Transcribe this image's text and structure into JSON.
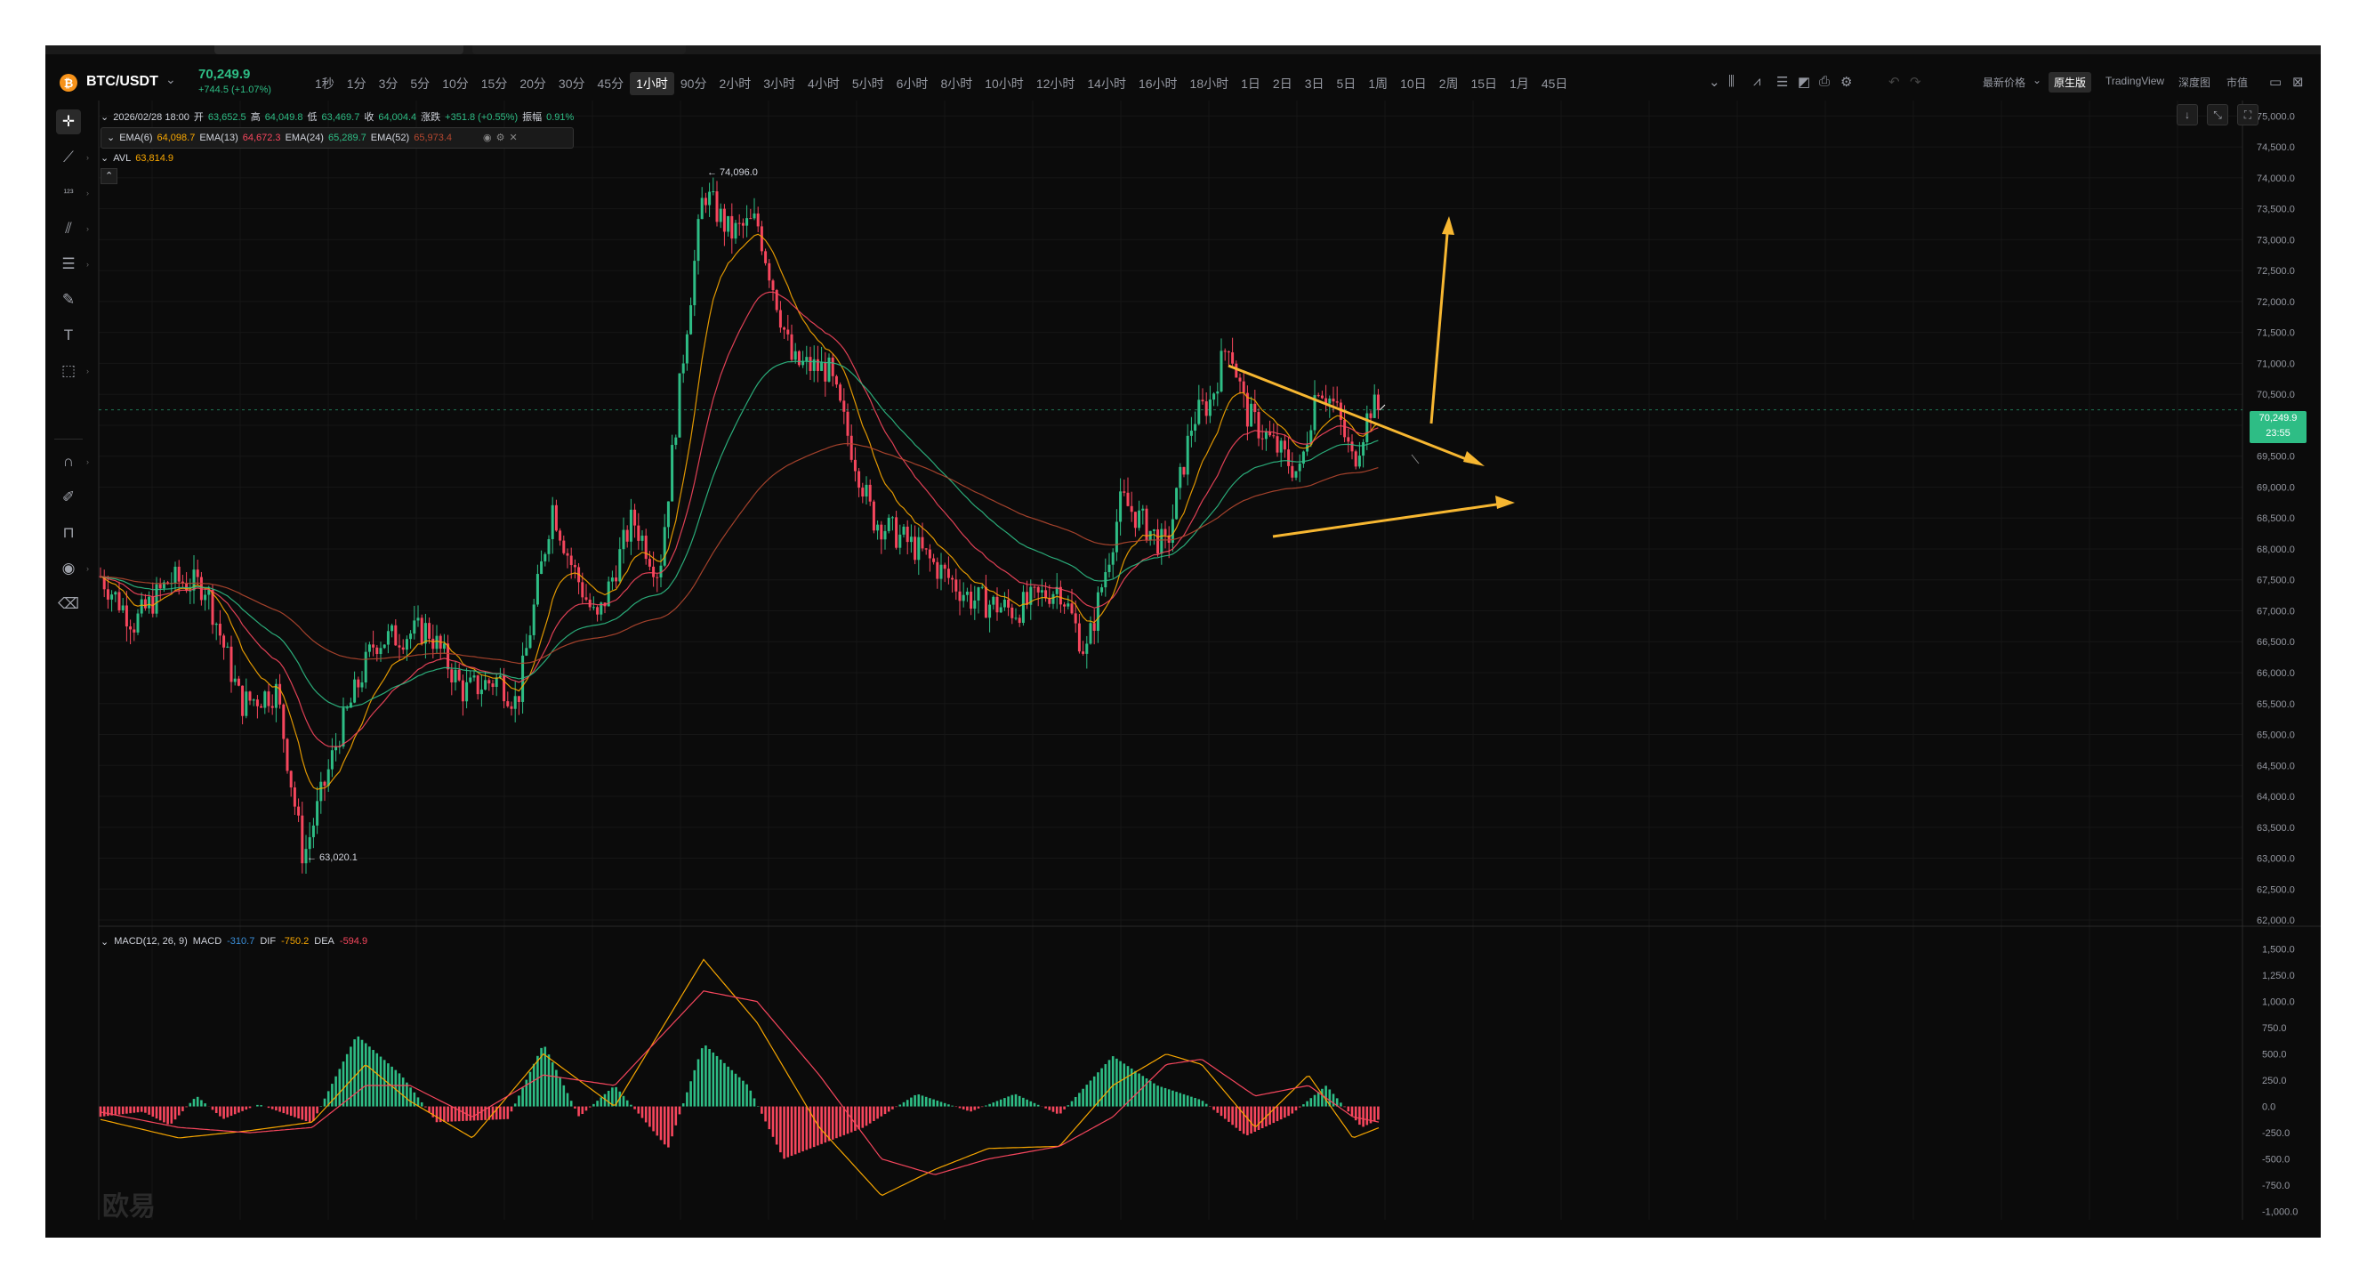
{
  "toolbar": {
    "pair": "BTC/USDT",
    "last_price": "70,249.9",
    "change": "+744.5 (+1.07%)",
    "intervals": [
      "1秒",
      "1分",
      "3分",
      "5分",
      "10分",
      "15分",
      "20分",
      "30分",
      "45分",
      "1小时",
      "90分",
      "2小时",
      "3小时",
      "4小时",
      "5小时",
      "6小时",
      "8小时",
      "10小时",
      "12小时",
      "14小时",
      "16小时",
      "18小时",
      "1日",
      "2日",
      "3日",
      "5日",
      "1周",
      "10日",
      "2周",
      "15日",
      "1月",
      "45日"
    ],
    "active_interval": "1小时",
    "price_source": "最新价格",
    "views": [
      "原生版",
      "TradingView",
      "深度图",
      "市值"
    ],
    "active_view": "原生版"
  },
  "legend": {
    "date": "2026/02/28 18:00",
    "open_label": "开",
    "open": "63,652.5",
    "high_label": "高",
    "high": "64,049.8",
    "low_label": "低",
    "low": "63,469.7",
    "close_label": "收",
    "close": "64,004.4",
    "chg_label": "涨跌",
    "chg": "+351.8 (+0.55%)",
    "amp_label": "振幅",
    "amp": "0.91%",
    "ema": [
      {
        "label": "EMA(6)",
        "value": "64,098.7",
        "color": "#f7a600"
      },
      {
        "label": "EMA(13)",
        "value": "64,672.3",
        "color": "#f6465d"
      },
      {
        "label": "EMA(24)",
        "value": "65,289.7",
        "color": "#2ebd85"
      },
      {
        "label": "EMA(52)",
        "value": "65,973.4",
        "color": "#b4472f"
      }
    ],
    "avl_label": "AVL",
    "avl": "63,814.9"
  },
  "annotations": {
    "high_mark": "74,096.0",
    "low_mark": "63,020.1"
  },
  "price_badge": {
    "price": "70,249.9",
    "countdown": "23:55"
  },
  "price_axis": [
    "75,000.0",
    "74,500.0",
    "74,000.0",
    "73,500.0",
    "73,000.0",
    "72,500.0",
    "72,000.0",
    "71,500.0",
    "71,000.0",
    "70,500.0",
    "70,000.0",
    "69,500.0",
    "69,000.0",
    "68,500.0",
    "68,000.0",
    "67,500.0",
    "67,000.0",
    "66,500.0",
    "66,000.0",
    "65,500.0",
    "65,000.0",
    "64,500.0",
    "64,000.0",
    "63,500.0",
    "63,000.0",
    "62,500.0",
    "62,000.0"
  ],
  "macd": {
    "label": "MACD(12, 26, 9)",
    "macd_label": "MACD",
    "macd": "-310.7",
    "dif_label": "DIF",
    "dif": "-750.2",
    "dea_label": "DEA",
    "dea": "-594.9",
    "axis": [
      "1,500.0",
      "1,250.0",
      "1,000.0",
      "750.0",
      "500.0",
      "250.0",
      "0.0",
      "-250.0",
      "-500.0",
      "-750.0",
      "-1,000.0"
    ]
  },
  "watermark": "欧易",
  "colors": {
    "up": "#2ebd85",
    "down": "#f6465d",
    "arrow": "#f7b731",
    "bg": "#0b0b0b"
  }
}
